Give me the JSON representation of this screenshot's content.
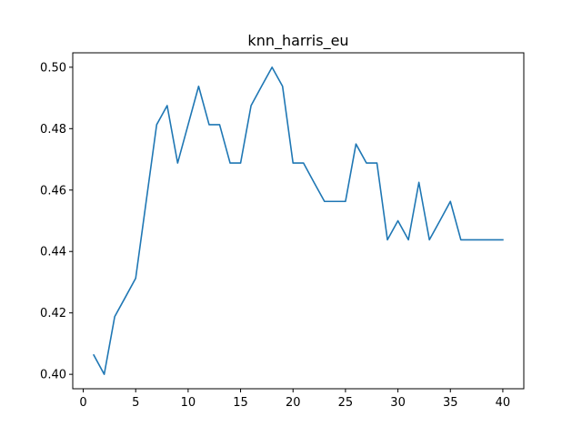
{
  "chart_data": {
    "type": "line",
    "title": "knn_harris_eu",
    "xlabel": "",
    "ylabel": "",
    "xlim": [
      -1,
      42
    ],
    "ylim": [
      0.3953,
      0.5047
    ],
    "x_ticks": [
      0,
      5,
      10,
      15,
      20,
      25,
      30,
      35,
      40
    ],
    "x_tick_labels": [
      "0",
      "5",
      "10",
      "15",
      "20",
      "25",
      "30",
      "35",
      "40"
    ],
    "y_ticks": [
      0.4,
      0.42,
      0.44,
      0.46,
      0.48,
      0.5
    ],
    "y_tick_labels": [
      "0.40",
      "0.42",
      "0.44",
      "0.46",
      "0.48",
      "0.50"
    ],
    "grid": false,
    "series": [
      {
        "color": "#1f77b4",
        "x": [
          1,
          2,
          3,
          4,
          5,
          6,
          7,
          8,
          9,
          10,
          11,
          12,
          13,
          14,
          15,
          16,
          17,
          18,
          19,
          20,
          21,
          22,
          23,
          24,
          25,
          26,
          27,
          28,
          29,
          30,
          31,
          32,
          33,
          34,
          35,
          36,
          37,
          38,
          39,
          40
        ],
        "y": [
          0.4063,
          0.4,
          0.4188,
          0.425,
          0.4313,
          0.4563,
          0.4813,
          0.4875,
          0.4688,
          0.4813,
          0.4938,
          0.4813,
          0.4813,
          0.4688,
          0.4688,
          0.4875,
          0.4938,
          0.5,
          0.4938,
          0.4688,
          0.4688,
          0.4625,
          0.4563,
          0.4563,
          0.4563,
          0.475,
          0.4688,
          0.4688,
          0.4438,
          0.45,
          0.4438,
          0.4625,
          0.4438,
          0.45,
          0.4563,
          0.4438,
          0.4438,
          0.4438,
          0.4438,
          0.4438
        ]
      }
    ]
  }
}
